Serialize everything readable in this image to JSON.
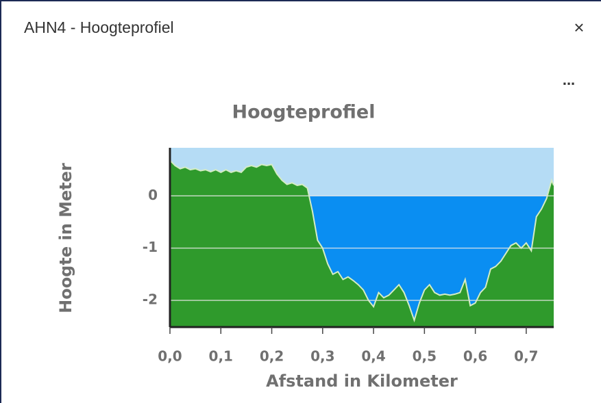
{
  "window": {
    "title": "AHN4 - Hoogteprofiel",
    "close": "×",
    "menu": "..."
  },
  "chart_data": {
    "type": "area",
    "title": "Hoogteprofiel",
    "x_label": "Afstand in Kilometer",
    "y_label": "Hoogte in Meter",
    "x": [
      0,
      0.01,
      0.02,
      0.03,
      0.04,
      0.05,
      0.06,
      0.07,
      0.08,
      0.09,
      0.1,
      0.11,
      0.12,
      0.13,
      0.14,
      0.15,
      0.16,
      0.17,
      0.18,
      0.19,
      0.2,
      0.21,
      0.22,
      0.23,
      0.24,
      0.25,
      0.26,
      0.27,
      0.28,
      0.29,
      0.3,
      0.31,
      0.32,
      0.33,
      0.34,
      0.35,
      0.36,
      0.37,
      0.38,
      0.39,
      0.4,
      0.41,
      0.42,
      0.43,
      0.44,
      0.45,
      0.46,
      0.47,
      0.48,
      0.49,
      0.5,
      0.51,
      0.52,
      0.53,
      0.54,
      0.55,
      0.56,
      0.57,
      0.58,
      0.59,
      0.6,
      0.61,
      0.62,
      0.63,
      0.64,
      0.65,
      0.66,
      0.67,
      0.68,
      0.69,
      0.7,
      0.71,
      0.72,
      0.73,
      0.74,
      0.75,
      0.754
    ],
    "values": [
      0.68,
      0.58,
      0.52,
      0.55,
      0.5,
      0.52,
      0.48,
      0.5,
      0.46,
      0.5,
      0.45,
      0.5,
      0.45,
      0.48,
      0.45,
      0.55,
      0.58,
      0.55,
      0.6,
      0.58,
      0.6,
      0.42,
      0.3,
      0.22,
      0.25,
      0.2,
      0.22,
      0.15,
      -0.3,
      -0.85,
      -1.0,
      -1.3,
      -1.5,
      -1.45,
      -1.6,
      -1.55,
      -1.62,
      -1.7,
      -1.8,
      -2.0,
      -2.12,
      -1.85,
      -1.95,
      -1.9,
      -1.8,
      -1.7,
      -1.85,
      -2.1,
      -2.38,
      -2.05,
      -1.8,
      -1.7,
      -1.85,
      -1.9,
      -1.88,
      -1.9,
      -1.88,
      -1.85,
      -1.6,
      -2.1,
      -2.05,
      -1.85,
      -1.75,
      -1.4,
      -1.35,
      -1.25,
      -1.1,
      -0.95,
      -0.9,
      -1.0,
      -0.9,
      -1.05,
      -0.4,
      -0.25,
      -0.05,
      0.3,
      0.2
    ],
    "color": "#2f9a2c",
    "line_color": "#d4ecc4",
    "water_color": "#0a8ef2",
    "sky_color": "#b5dcf5",
    "water_level": 0,
    "xlim": [
      0,
      0.754
    ],
    "ylim": [
      -2.51,
      0.92
    ],
    "xticks": [
      {
        "value": 0,
        "label": "0,0"
      },
      {
        "value": 0.1,
        "label": "0,1"
      },
      {
        "value": 0.2,
        "label": "0,2"
      },
      {
        "value": 0.3,
        "label": "0,3"
      },
      {
        "value": 0.4,
        "label": "0,4"
      },
      {
        "value": 0.5,
        "label": "0,5"
      },
      {
        "value": 0.6,
        "label": "0,6"
      },
      {
        "value": 0.7,
        "label": "0,7"
      }
    ],
    "yticks": [
      -2,
      -1,
      0
    ],
    "grid": true
  }
}
